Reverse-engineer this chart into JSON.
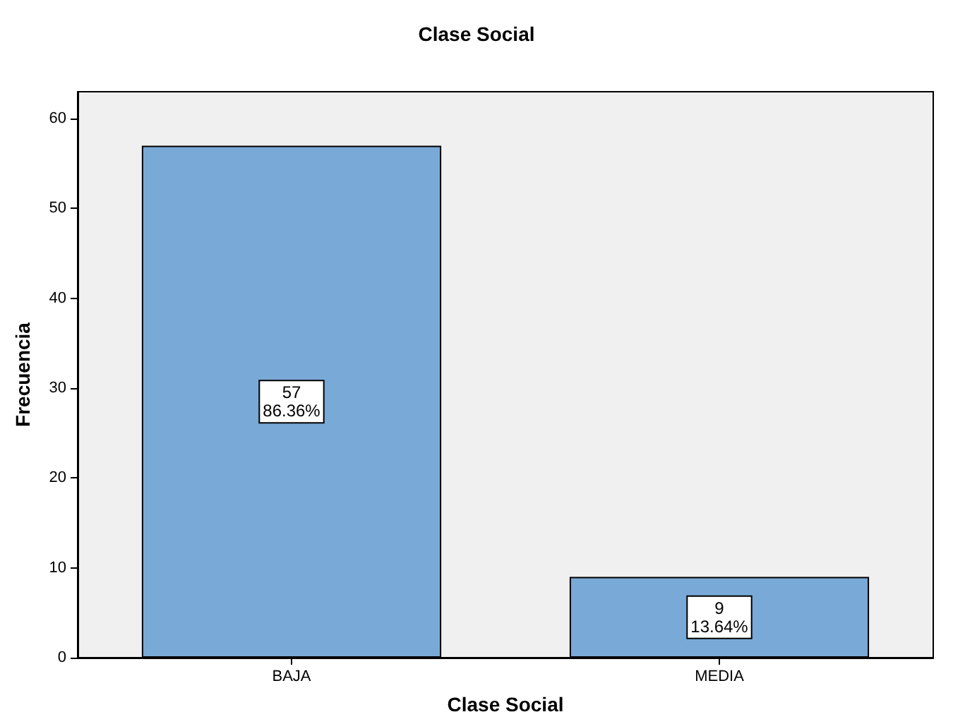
{
  "chart_data": {
    "type": "bar",
    "title": "Clase Social",
    "xlabel": "Clase Social",
    "ylabel": "Frecuencia",
    "categories": [
      "BAJA",
      "MEDIA"
    ],
    "values": [
      57,
      9
    ],
    "value_labels": [
      "57\n86.36%",
      "9\n13.64%"
    ],
    "color": "#79a9d6",
    "ylim": [
      0,
      63
    ],
    "yticks": [
      0,
      10,
      20,
      30,
      40,
      50,
      60
    ],
    "grid": false
  }
}
